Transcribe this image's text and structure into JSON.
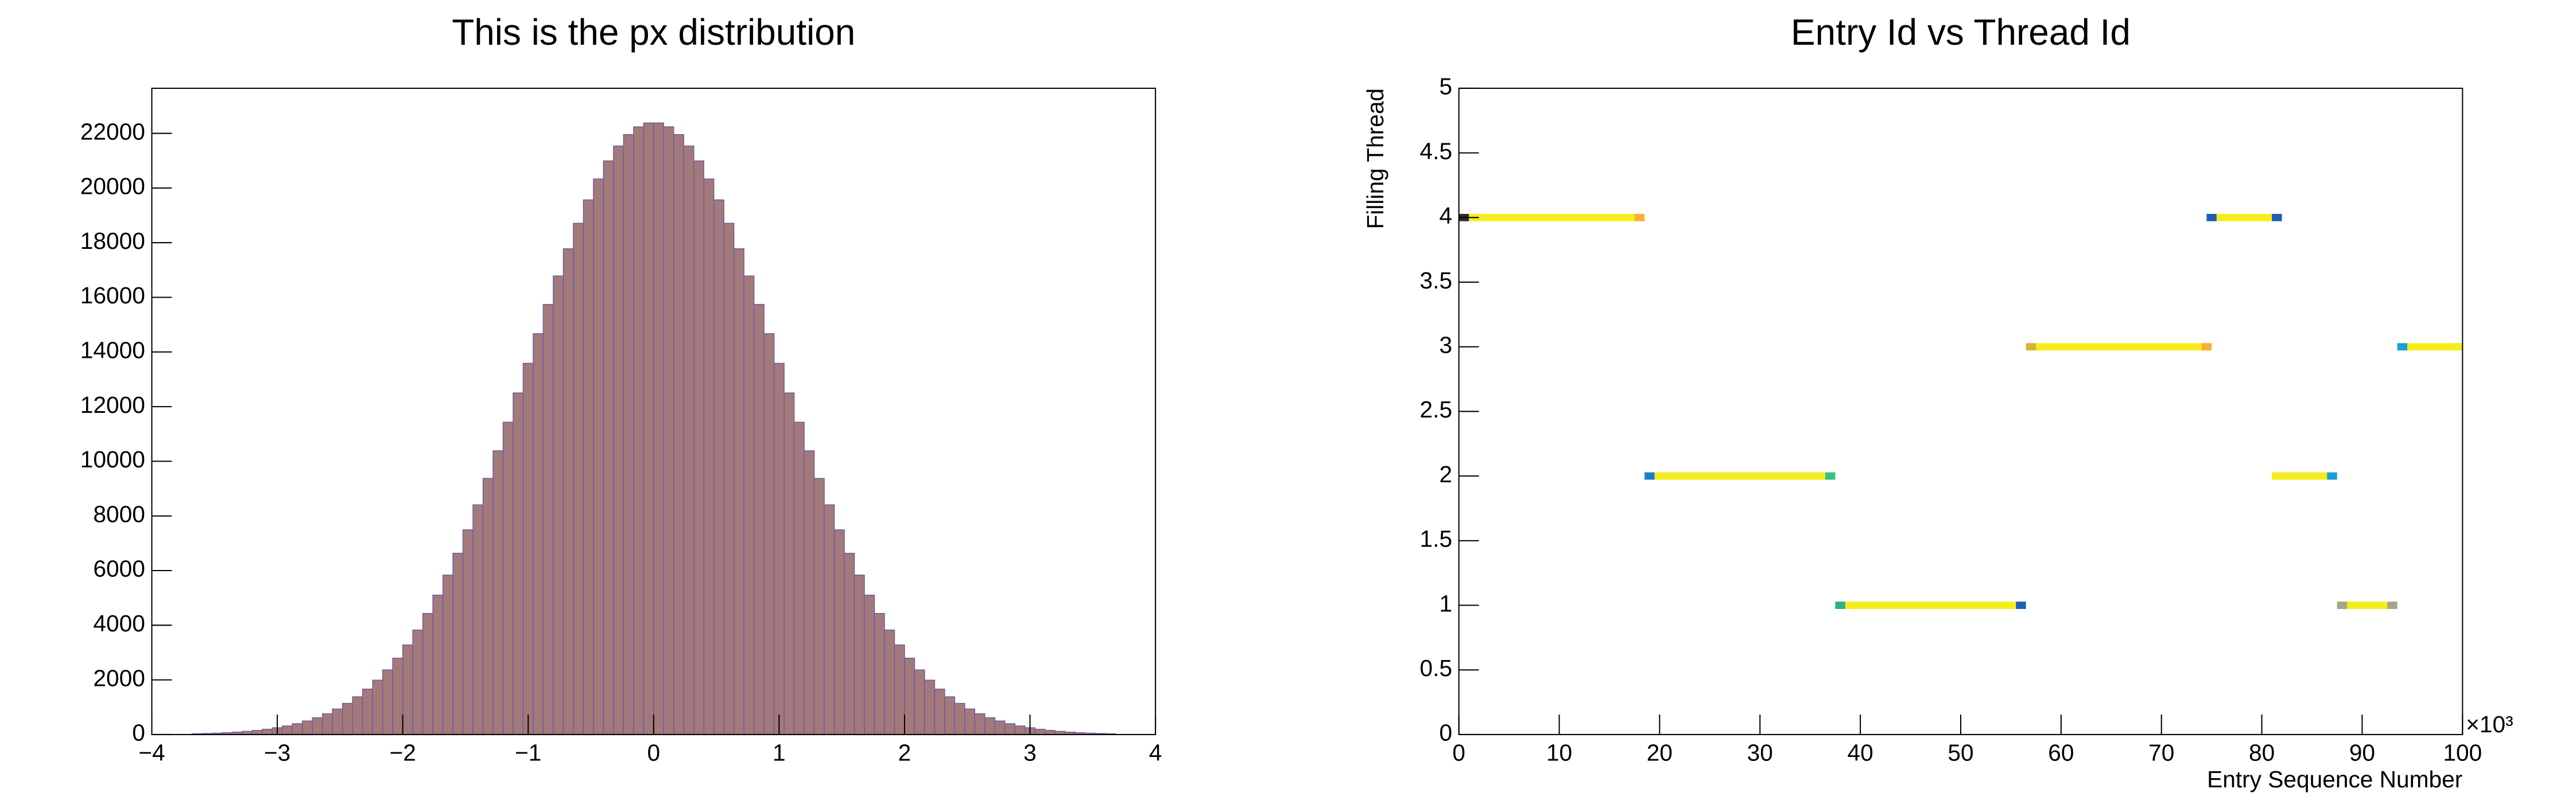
{
  "chart_data": [
    {
      "type": "histogram",
      "title": "This is the px distribution",
      "bins": [
        -4,
        -3.92,
        -3.84,
        -3.76,
        -3.68,
        -3.6,
        -3.52,
        -3.44,
        -3.36,
        -3.28,
        -3.2,
        -3.12,
        -3.04,
        -2.96,
        -2.88,
        -2.8,
        -2.72,
        -2.64,
        -2.56,
        -2.48,
        -2.4,
        -2.32,
        -2.24,
        -2.16,
        -2.08,
        -2,
        -1.92,
        -1.84,
        -1.76,
        -1.68,
        -1.6,
        -1.52,
        -1.44,
        -1.36,
        -1.28,
        -1.2,
        -1.12,
        -1.04,
        -0.96,
        -0.88,
        -0.8,
        -0.72,
        -0.64,
        -0.56,
        -0.48,
        -0.4,
        -0.32,
        -0.24,
        -0.16,
        -0.08,
        0,
        0.08,
        0.16,
        0.24,
        0.32,
        0.4,
        0.48,
        0.56,
        0.64,
        0.72,
        0.8,
        0.88,
        0.96,
        1.04,
        1.12,
        1.2,
        1.28,
        1.36,
        1.44,
        1.52,
        1.6,
        1.68,
        1.76,
        1.84,
        1.92,
        2,
        2.08,
        2.16,
        2.24,
        2.32,
        2.4,
        2.48,
        2.56,
        2.64,
        2.72,
        2.8,
        2.88,
        2.96,
        3.04,
        3.12,
        3.2,
        3.28,
        3.36,
        3.44,
        3.52,
        3.6,
        3.68,
        3.76,
        3.84,
        3.92,
        4
      ],
      "values": [
        0,
        0,
        0,
        0,
        30,
        40,
        52,
        69,
        90,
        118,
        152,
        195,
        249,
        315,
        397,
        497,
        617,
        762,
        936,
        1141,
        1382,
        1664,
        1991,
        2367,
        2796,
        3281,
        3826,
        4433,
        5103,
        5837,
        6635,
        7493,
        8407,
        9374,
        10385,
        11431,
        12502,
        13586,
        14670,
        15741,
        16782,
        17777,
        18711,
        19567,
        20333,
        20994,
        21539,
        21956,
        22239,
        22382,
        22382,
        22239,
        21956,
        21539,
        20994,
        20333,
        19567,
        18711,
        17777,
        16782,
        15741,
        14670,
        13586,
        12502,
        11431,
        10385,
        9374,
        8407,
        7493,
        6635,
        5837,
        5103,
        4433,
        3826,
        3281,
        2796,
        2367,
        1991,
        1664,
        1382,
        1141,
        936,
        762,
        617,
        497,
        397,
        315,
        249,
        195,
        152,
        118,
        90,
        69,
        52,
        40,
        30,
        0,
        0,
        0,
        0
      ],
      "color": "#a3797b",
      "line_color": "#6e5c9e",
      "xlim": [
        -4,
        4
      ],
      "xticks": [
        {
          "value": -4,
          "label": "−4"
        },
        {
          "value": -3,
          "label": "−3"
        },
        {
          "value": -2,
          "label": "−2"
        },
        {
          "value": -1,
          "label": "−1"
        },
        0,
        1,
        2,
        3,
        4
      ],
      "ylim": [
        0,
        23650
      ],
      "yticks": [
        0,
        2000,
        4000,
        6000,
        8000,
        10000,
        12000,
        14000,
        16000,
        18000,
        20000,
        22000
      ]
    },
    {
      "type": "segments",
      "title": "Entry Id vs Thread Id",
      "x_label": "Entry Sequence Number",
      "y_label": "Filling Thread",
      "x_multiplier": "×10³",
      "color": "#f5ee1c",
      "segments": [
        {
          "y": 4,
          "x": [
            0,
            18.5
          ],
          "start_color": "#2d2d2d",
          "end_color": "#f5b03a"
        },
        {
          "y": 4,
          "x": [
            74.5,
            82
          ],
          "start_color": "#1d5fb8",
          "end_color": "#1d5fb8"
        },
        {
          "y": 3,
          "x": [
            56.5,
            75
          ],
          "start_color": "#d8b33c",
          "end_color": "#f5b03a"
        },
        {
          "y": 3,
          "x": [
            93.5,
            100
          ],
          "start_color": "#1aa0d6",
          "end_color": "#f5ee1c"
        },
        {
          "y": 2,
          "x": [
            18.5,
            37.5
          ],
          "start_color": "#1a7ed0",
          "end_color": "#3cbf84"
        },
        {
          "y": 2,
          "x": [
            81,
            87.5
          ],
          "start_color": "#f5ee1c",
          "end_color": "#1aa0d6"
        },
        {
          "y": 1,
          "x": [
            37.5,
            56.5
          ],
          "start_color": "#28b28e",
          "end_color": "#1d5fb8"
        },
        {
          "y": 1,
          "x": [
            87.5,
            93.5
          ],
          "start_color": "#a5a58a",
          "end_color": "#a5a58a"
        }
      ],
      "xlim": [
        0,
        100
      ],
      "xticks": [
        0,
        10,
        20,
        30,
        40,
        50,
        60,
        70,
        80,
        90,
        100
      ],
      "ylim": [
        0,
        5
      ],
      "yticks": [
        0,
        0.5,
        1,
        1.5,
        2,
        2.5,
        3,
        3.5,
        4,
        4.5,
        5
      ]
    }
  ]
}
